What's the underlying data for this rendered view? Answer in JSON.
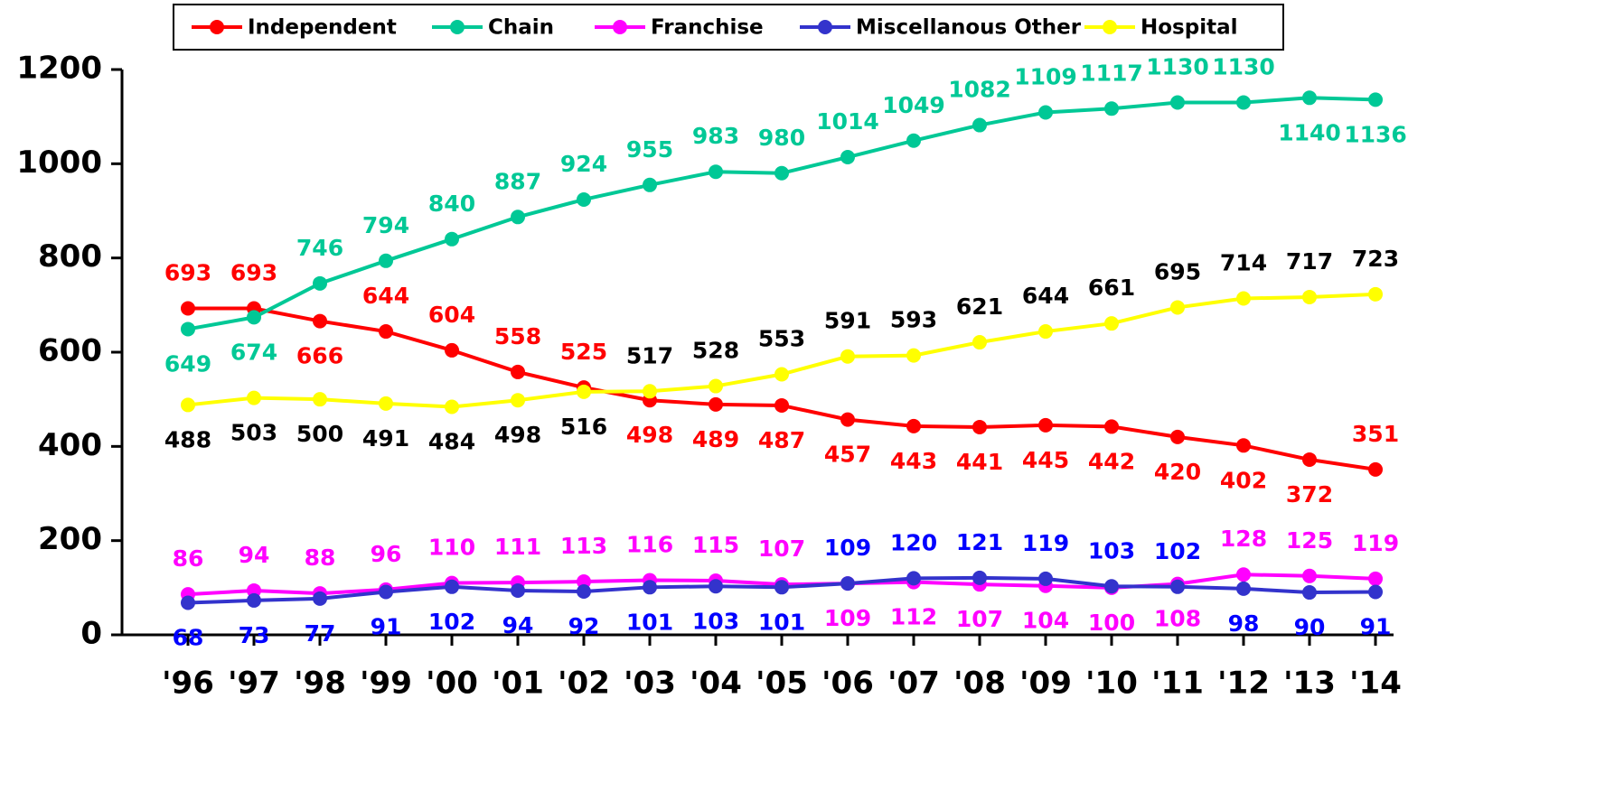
{
  "chart_data": {
    "type": "line",
    "categories": [
      "'96",
      "'97",
      "'98",
      "'99",
      "'00",
      "'01",
      "'02",
      "'03",
      "'04",
      "'05",
      "'06",
      "'07",
      "'08",
      "'09",
      "'10",
      "'11",
      "'12",
      "'13",
      "'14"
    ],
    "series": [
      {
        "name": "Independent",
        "color": "#ff0000",
        "label_color": "#ff0000",
        "values": [
          693,
          693,
          666,
          644,
          604,
          558,
          525,
          498,
          489,
          487,
          457,
          443,
          441,
          445,
          442,
          420,
          402,
          372,
          351
        ]
      },
      {
        "name": "Chain",
        "color": "#00c896",
        "label_color": "#00c896",
        "values": [
          649,
          674,
          746,
          794,
          840,
          887,
          924,
          955,
          983,
          980,
          1014,
          1049,
          1082,
          1109,
          1117,
          1130,
          1130,
          1140,
          1136
        ]
      },
      {
        "name": "Franchise",
        "color": "#ff00ff",
        "label_color": "#ff00ff",
        "values": [
          86,
          94,
          88,
          96,
          110,
          111,
          113,
          116,
          115,
          107,
          109,
          112,
          107,
          104,
          100,
          108,
          128,
          125,
          119
        ]
      },
      {
        "name": "Miscellanous Other",
        "color": "#3333cc",
        "label_color": "#0000ff",
        "values": [
          68,
          73,
          77,
          91,
          102,
          94,
          92,
          101,
          103,
          101,
          109,
          120,
          121,
          119,
          103,
          102,
          98,
          90,
          91
        ]
      },
      {
        "name": "Hospital",
        "color": "#ffff00",
        "label_color": "#000000",
        "values": [
          488,
          503,
          500,
          491,
          484,
          498,
          516,
          517,
          528,
          553,
          591,
          593,
          621,
          644,
          661,
          695,
          714,
          717,
          723
        ]
      }
    ],
    "ylim": [
      0,
      1200
    ],
    "yticks": [
      0,
      200,
      400,
      600,
      800,
      1000,
      1200
    ],
    "grid": false,
    "legend": "top"
  }
}
